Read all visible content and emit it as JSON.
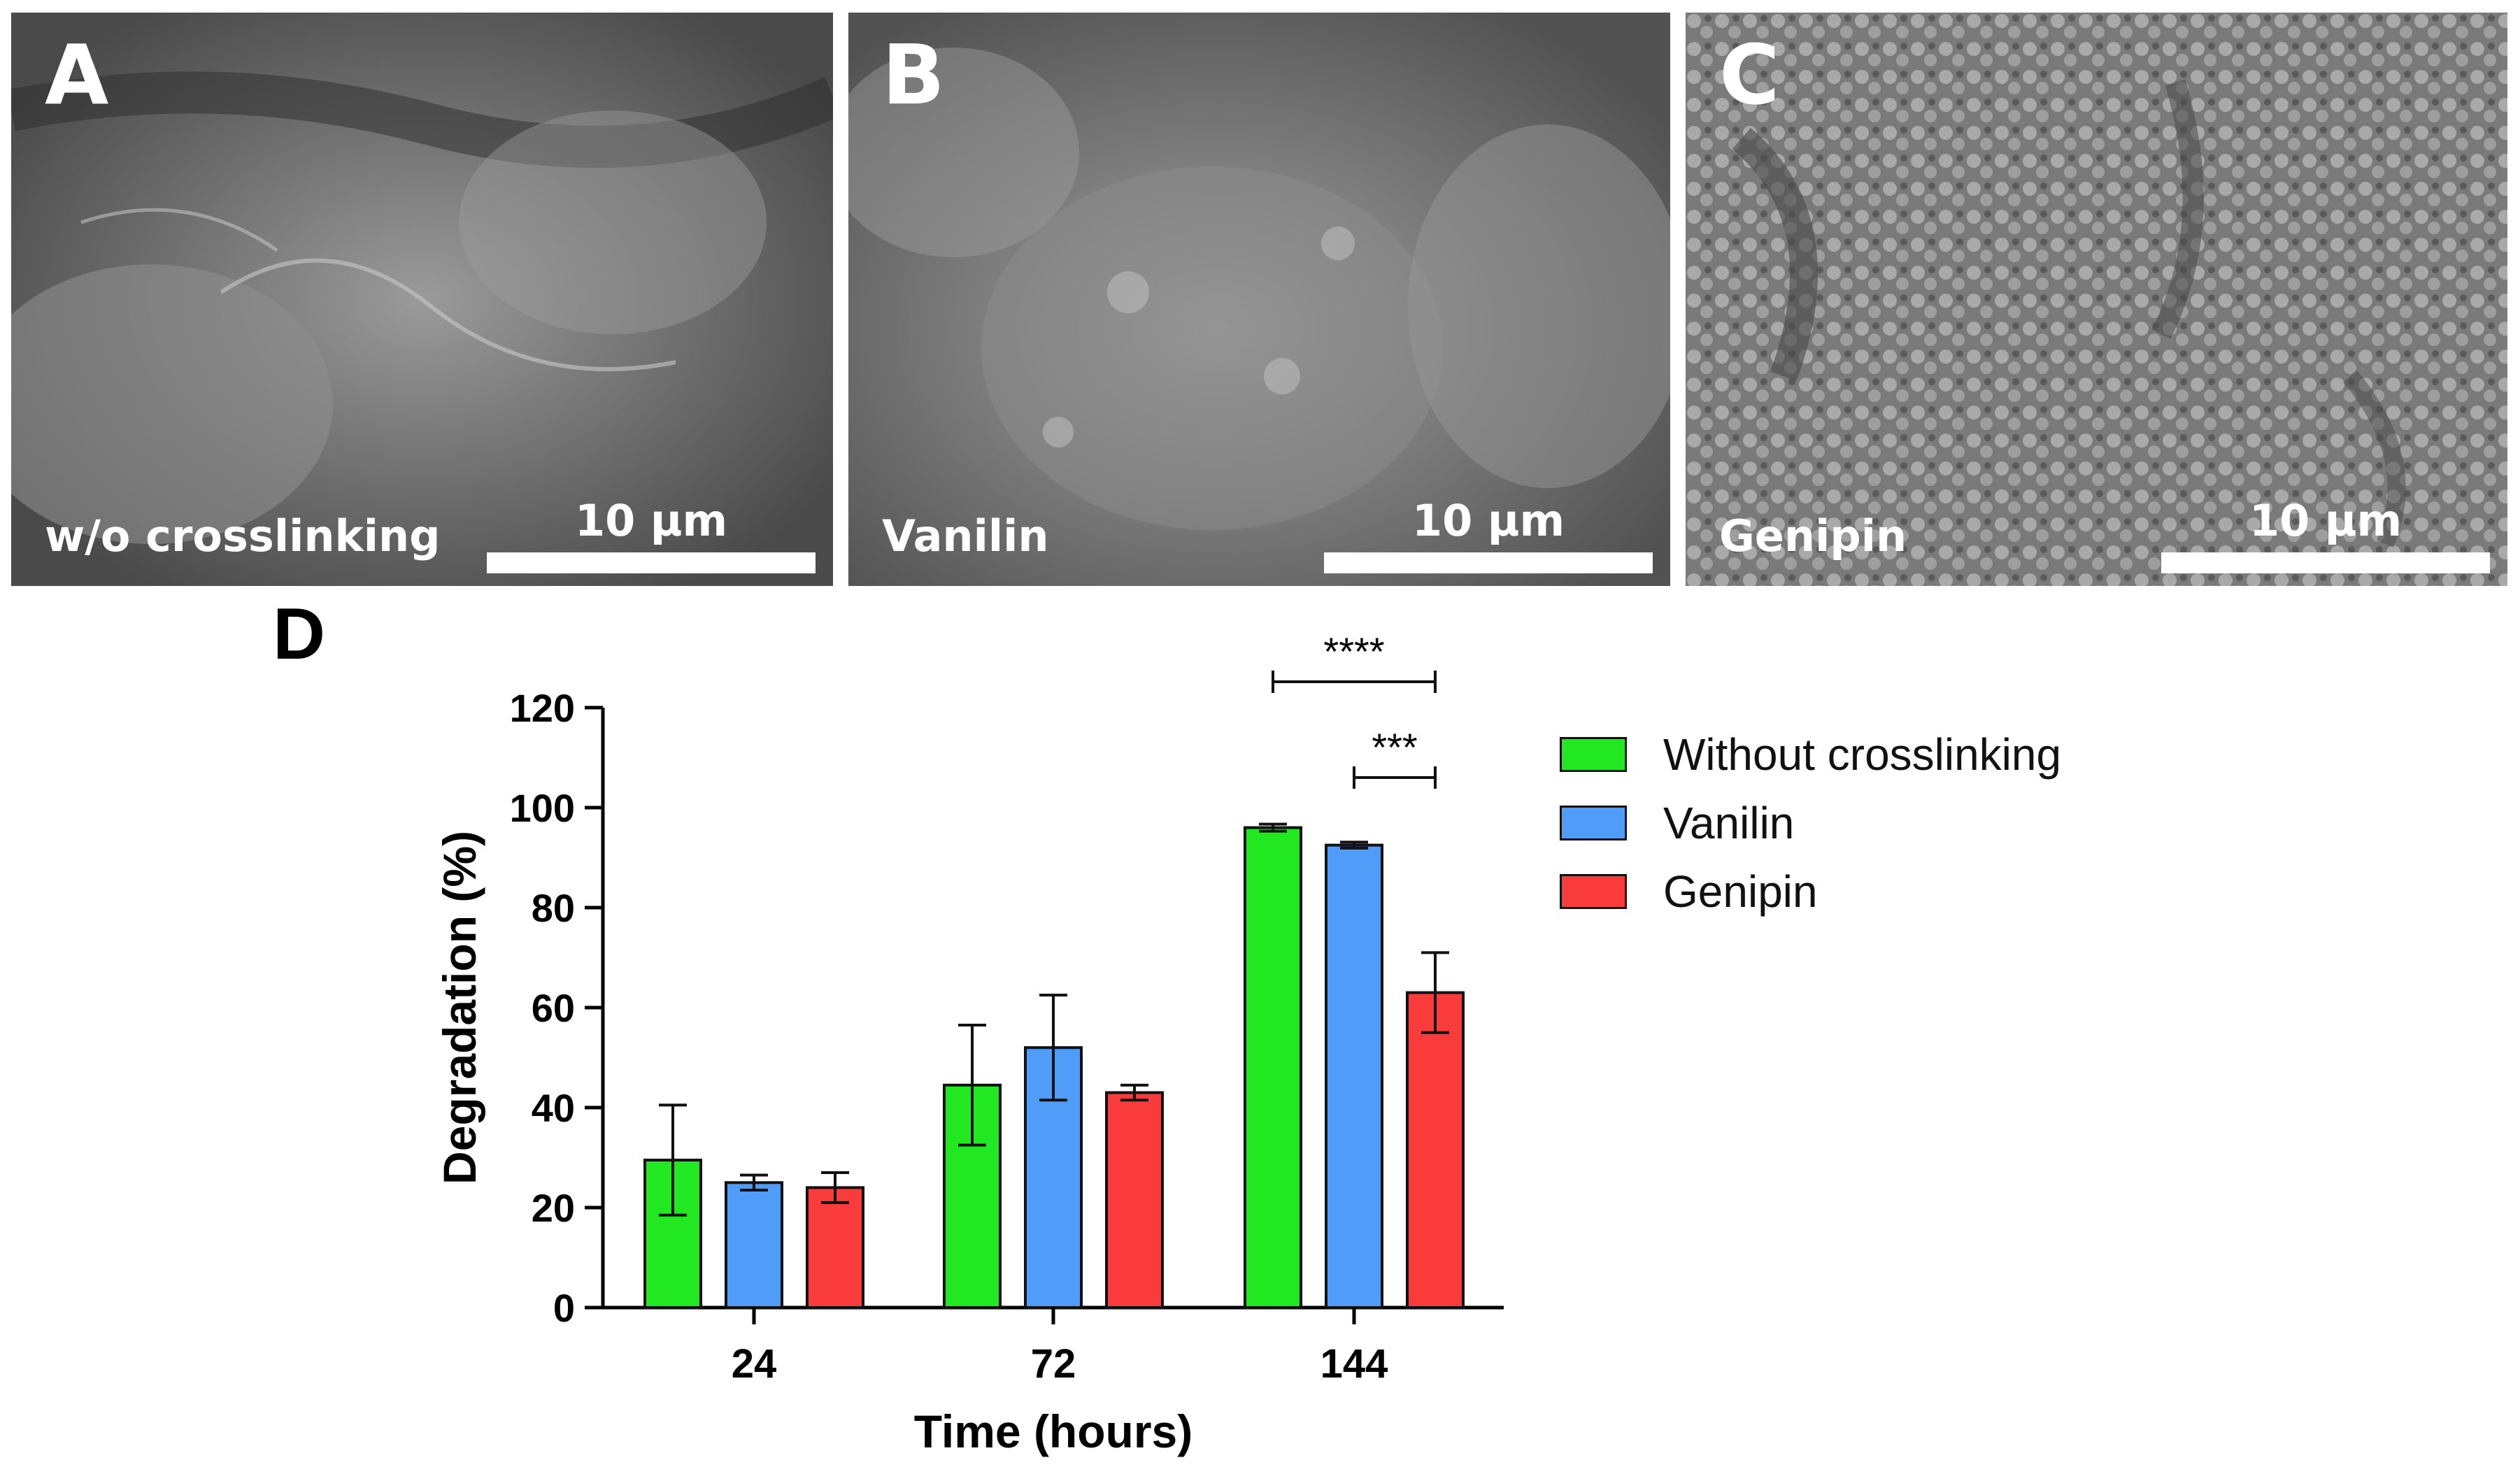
{
  "panels": [
    {
      "letter": "A",
      "caption": "w/o crosslinking",
      "scale": "10 µm",
      "tone": "#767676"
    },
    {
      "letter": "B",
      "caption": "Vanilin",
      "scale": "10 µm",
      "tone": "#7c7c7c"
    },
    {
      "letter": "C",
      "caption": "Genipin",
      "scale": "10 µm",
      "tone": "#858585"
    }
  ],
  "panel_d_letter": "D",
  "chart_data": {
    "type": "bar",
    "categories": [
      "24",
      "72",
      "144"
    ],
    "series": [
      {
        "name": "Without crosslinking",
        "color": "#22e822",
        "values": [
          29.5,
          44.5,
          96
        ],
        "errors": [
          11,
          12,
          0.7
        ]
      },
      {
        "name": "Vanilin",
        "color": "#4f9cf9",
        "values": [
          25,
          52,
          92.5
        ],
        "errors": [
          1.5,
          10.5,
          0.6
        ]
      },
      {
        "name": "Genipin",
        "color": "#f93b3b",
        "values": [
          24,
          43,
          63
        ],
        "errors": [
          3,
          1.5,
          8
        ]
      }
    ],
    "xlabel": "Time (hours)",
    "ylabel": "Degradation (%)",
    "ylim": [
      0,
      120
    ],
    "yticks": [
      0,
      20,
      40,
      60,
      80,
      100,
      120
    ],
    "legend_position": "right",
    "significance": [
      {
        "label": "****",
        "category": "144",
        "from_series": 0,
        "to_series": 2
      },
      {
        "label": "***",
        "category": "144",
        "from_series": 1,
        "to_series": 2
      }
    ]
  }
}
